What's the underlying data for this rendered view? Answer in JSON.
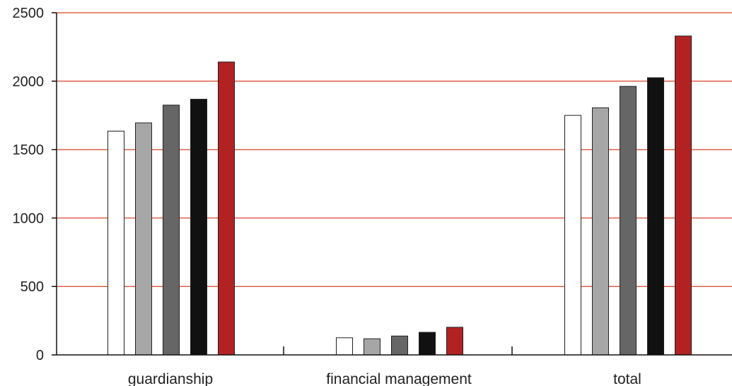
{
  "chart_data": {
    "type": "bar",
    "categories": [
      "guardianship",
      "financial management",
      "total"
    ],
    "series": [
      {
        "values": [
          1635,
          125,
          1750
        ],
        "color": "#ffffff"
      },
      {
        "values": [
          1695,
          118,
          1805
        ],
        "color": "#a6a6a6"
      },
      {
        "values": [
          1825,
          138,
          1962
        ],
        "color": "#666666"
      },
      {
        "values": [
          1868,
          165,
          2025
        ],
        "color": "#111111"
      },
      {
        "values": [
          2140,
          202,
          2330
        ],
        "color": "#b22222"
      }
    ],
    "title": "",
    "xlabel": "",
    "ylabel": "",
    "ylim": [
      0,
      2500
    ],
    "yticks": [
      0,
      500,
      1000,
      1500,
      2000,
      2500
    ],
    "grid": true,
    "grid_color": "#e0604a",
    "legend": "none"
  }
}
